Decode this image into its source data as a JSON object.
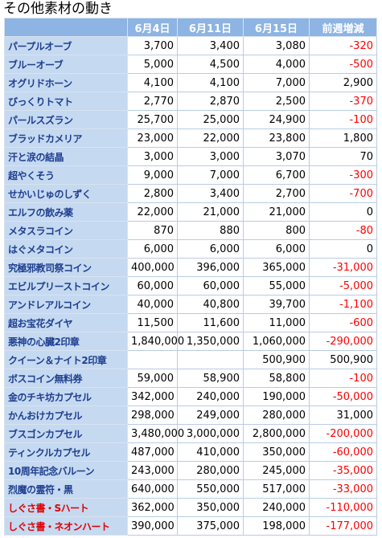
{
  "title": "その他素材の動き",
  "table": {
    "header": [
      null,
      "6月4日",
      "6月11日",
      "6月15日",
      "前週増減"
    ],
    "header_color": "#8db4e2",
    "name_background": "#c5d9f1",
    "name_color": "#1f3f8f",
    "negative_color": "#ff0000",
    "rows": [
      {
        "cells": [
          "パープルオーブ",
          "3,700",
          "3,400",
          "3,080",
          "-320"
        ]
      },
      {
        "cells": [
          "ブルーオーブ",
          "5,000",
          "4,500",
          "4,000",
          "-500"
        ]
      },
      {
        "cells": [
          "オグリドホーン",
          "4,100",
          "4,100",
          "7,000",
          "2,900"
        ]
      },
      {
        "cells": [
          "びっくりトマト",
          "2,770",
          "2,870",
          "2,500",
          "-370"
        ]
      },
      {
        "cells": [
          "パールスズラン",
          "25,700",
          "25,000",
          "24,900",
          "-100"
        ]
      },
      {
        "cells": [
          "ブラッドカメリア",
          "23,000",
          "22,000",
          "23,800",
          "1,800"
        ]
      },
      {
        "cells": [
          "汗と涙の結晶",
          "3,000",
          "3,000",
          "3,070",
          "70"
        ]
      },
      {
        "cells": [
          "超やくそう",
          "9,000",
          "7,000",
          "6,700",
          "-300"
        ]
      },
      {
        "cells": [
          "せかいじゅのしずく",
          "2,800",
          "3,400",
          "2,700",
          "-700"
        ]
      },
      {
        "cells": [
          "エルフの飲み薬",
          "22,000",
          "21,000",
          "21,000",
          "0"
        ]
      },
      {
        "cells": [
          "メタスラコイン",
          "870",
          "880",
          "800",
          "-80"
        ]
      },
      {
        "cells": [
          "はぐメタコイン",
          "6,000",
          "6,000",
          "6,000",
          "0"
        ]
      },
      {
        "cells": [
          "究極邪教司祭コイン",
          "400,000",
          "396,000",
          "365,000",
          "-31,000"
        ]
      },
      {
        "cells": [
          "エビルプリーストコイン",
          "60,000",
          "60,000",
          "55,000",
          "-5,000"
        ]
      },
      {
        "cells": [
          "アンドレアルコイン",
          "40,000",
          "40,800",
          "39,700",
          "-1,100"
        ]
      },
      {
        "cells": [
          "超お宝花ダイヤ",
          "11,500",
          "11,600",
          "11,000",
          "-600"
        ]
      },
      {
        "cells": [
          "悪神の心臓2印章",
          "1,840,000",
          "1,350,000",
          "1,060,000",
          "-290,000"
        ]
      },
      {
        "cells": [
          "クイーン＆ナイト2印章",
          null,
          null,
          "500,900",
          "500,900"
        ]
      },
      {
        "cells": [
          "ボスコイン無料券",
          "59,000",
          "58,900",
          "58,800",
          "-100"
        ]
      },
      {
        "cells": [
          "金のチキ坊カプセル",
          "342,000",
          "240,000",
          "190,000",
          "-50,000"
        ]
      },
      {
        "cells": [
          "かんおけカプセル",
          "298,000",
          "249,000",
          "280,000",
          "31,000"
        ]
      },
      {
        "cells": [
          "ブスゴンカプセル",
          "3,480,000",
          "3,000,000",
          "2,800,000",
          "-200,000"
        ]
      },
      {
        "cells": [
          "ティンクルカプセル",
          "487,000",
          "410,000",
          "350,000",
          "-60,000"
        ]
      },
      {
        "cells": [
          "10周年記念バルーン",
          "243,000",
          "280,000",
          "245,000",
          "-35,000"
        ]
      },
      {
        "cells": [
          "烈魔の霊符・黒",
          "640,000",
          "550,000",
          "517,000",
          "-33,000"
        ]
      },
      {
        "cells": [
          "しぐさ書・Sハート",
          "362,000",
          "350,000",
          "240,000",
          "-110,000"
        ],
        "name_color": "#e00000"
      },
      {
        "cells": [
          "しぐさ書・ネオンハート",
          "390,000",
          "375,000",
          "198,000",
          "-177,000"
        ],
        "name_color": "#e00000"
      }
    ]
  }
}
